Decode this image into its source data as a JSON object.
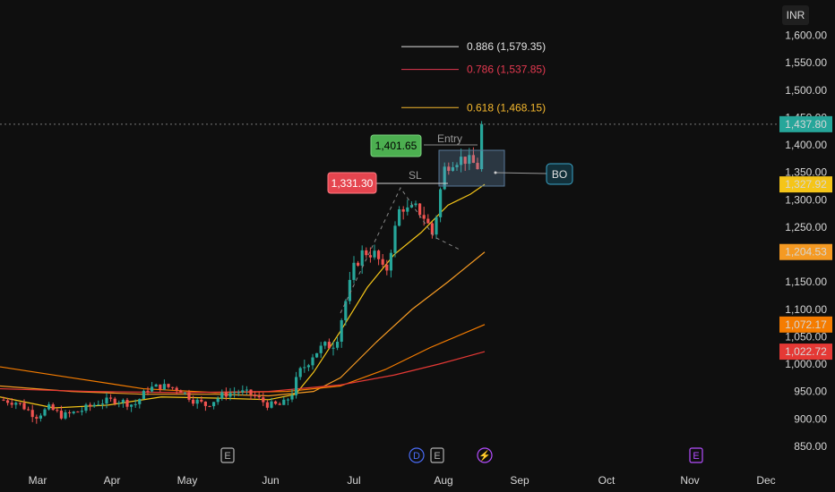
{
  "currency": "INR",
  "price_axis": {
    "ticks": [
      "1,600.00",
      "1,550.00",
      "1,500.00",
      "1,450.00",
      "1,400.00",
      "1,350.00",
      "1,300.00",
      "1,250.00",
      "1,200.00",
      "1,150.00",
      "1,100.00",
      "1,050.00",
      "1,000.00",
      "950.00",
      "900.00",
      "850.00"
    ],
    "tick_values": [
      1600,
      1550,
      1500,
      1450,
      1400,
      1350,
      1300,
      1250,
      1200,
      1150,
      1100,
      1050,
      1000,
      950,
      900,
      850
    ]
  },
  "price_badges": [
    {
      "label": "1,437.80",
      "value": 1437.8,
      "color": "#26a69a",
      "text_color": "#ffffff"
    },
    {
      "label": "1,327.92",
      "value": 1327.92,
      "color": "#f5c518",
      "text_color": "#000000"
    },
    {
      "label": "1,204.53",
      "value": 1204.53,
      "color": "#f59a23",
      "text_color": "#000000"
    },
    {
      "label": "1,072.17",
      "value": 1072.17,
      "color": "#f57c00",
      "text_color": "#000000"
    },
    {
      "label": "1,022.72",
      "value": 1022.72,
      "color": "#e53935",
      "text_color": "#ffffff"
    }
  ],
  "time_axis": {
    "labels": [
      "Mar",
      "Apr",
      "May",
      "Jun",
      "Jul",
      "Aug",
      "Sep",
      "Oct",
      "Nov",
      "Dec"
    ]
  },
  "fib_levels": [
    {
      "label": "0.886 (1,579.35)",
      "value": 1579.35,
      "color": "#e0e0e0"
    },
    {
      "label": "0.786 (1,537.85)",
      "value": 1537.85,
      "color": "#e53950"
    },
    {
      "label": "0.618 (1,468.15)",
      "value": 1468.15,
      "color": "#f5b82e"
    }
  ],
  "annotations": {
    "entry_price": "1,401.65",
    "entry_label": "Entry",
    "sl_price": "1,331.30",
    "sl_label": "SL",
    "bo_label": "BO"
  },
  "event_markers": [
    {
      "symbol": "E",
      "color": "#b0b0b0"
    },
    {
      "symbol": "D",
      "color": "#4a6cf7"
    },
    {
      "symbol": "E",
      "color": "#b0b0b0"
    },
    {
      "symbol": "⚡",
      "color": "#b44dff"
    },
    {
      "symbol": "E",
      "color": "#b44dff"
    }
  ],
  "colors": {
    "up": "#26a69a",
    "down": "#ef5350",
    "background": "#0f0f0f",
    "ma_short": "#f5c518",
    "ma_mid": "#f59a23",
    "ma_long": "#f57c00",
    "ma_longest": "#e53935"
  },
  "chart_data": {
    "type": "candlestick",
    "x": "days from Mar to Aug",
    "y_range": [
      830,
      1620
    ],
    "current_price": 1437.8
  }
}
